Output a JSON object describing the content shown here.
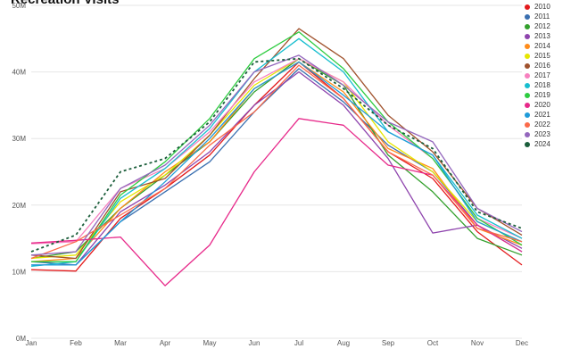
{
  "chart_data": {
    "type": "line",
    "title": "Recreation Visits",
    "xlabel": "",
    "ylabel": "",
    "categories": [
      "Jan",
      "Feb",
      "Mar",
      "Apr",
      "May",
      "Jun",
      "Jul",
      "Aug",
      "Sep",
      "Oct",
      "Nov",
      "Dec"
    ],
    "ylim": [
      0,
      50000000
    ],
    "y_ticks": [
      0,
      10000000,
      20000000,
      30000000,
      40000000,
      50000000
    ],
    "y_tick_labels": [
      "0M",
      "10M",
      "20M",
      "30M",
      "40M",
      "50M"
    ],
    "grid": true,
    "legend_position": "right",
    "series": [
      {
        "name": "2010",
        "color": "#e31a1c",
        "dash": false,
        "values": [
          10.3,
          10.1,
          18.0,
          22.5,
          27.5,
          35.0,
          41.5,
          36.0,
          28.0,
          24.0,
          16.0,
          11.0
        ]
      },
      {
        "name": "2011",
        "color": "#3a6fb0",
        "dash": false,
        "values": [
          11.5,
          11.0,
          17.5,
          22.0,
          26.5,
          34.0,
          40.5,
          35.5,
          29.0,
          25.0,
          17.0,
          13.0
        ]
      },
      {
        "name": "2012",
        "color": "#33a02c",
        "dash": false,
        "values": [
          12.0,
          13.0,
          19.5,
          24.5,
          29.5,
          37.0,
          42.0,
          38.0,
          27.5,
          22.0,
          15.0,
          12.5
        ]
      },
      {
        "name": "2013",
        "color": "#8e44ad",
        "dash": false,
        "values": [
          11.0,
          11.0,
          19.0,
          23.0,
          28.0,
          35.0,
          40.0,
          35.0,
          27.0,
          15.8,
          17.0,
          13.5
        ]
      },
      {
        "name": "2014",
        "color": "#ff8c1a",
        "dash": false,
        "values": [
          11.5,
          12.0,
          19.5,
          25.0,
          29.5,
          37.5,
          41.5,
          37.0,
          28.5,
          25.5,
          16.5,
          14.0
        ]
      },
      {
        "name": "2015",
        "color": "#e6e600",
        "dash": false,
        "values": [
          12.0,
          12.5,
          20.5,
          24.5,
          30.5,
          38.0,
          42.0,
          38.5,
          29.5,
          25.0,
          17.5,
          14.5
        ]
      },
      {
        "name": "2016",
        "color": "#a0522d",
        "dash": false,
        "values": [
          12.5,
          12.0,
          22.0,
          24.0,
          30.5,
          39.0,
          46.5,
          42.0,
          33.5,
          28.0,
          19.5,
          15.5
        ]
      },
      {
        "name": "2017",
        "color": "#f781bf",
        "dash": false,
        "values": [
          14.2,
          14.5,
          22.5,
          25.5,
          31.0,
          38.5,
          42.0,
          38.5,
          32.0,
          27.0,
          18.0,
          15.0
        ]
      },
      {
        "name": "2018",
        "color": "#17becf",
        "dash": false,
        "values": [
          10.8,
          11.5,
          21.0,
          25.5,
          31.5,
          40.0,
          45.0,
          40.0,
          31.0,
          27.5,
          18.5,
          15.0
        ]
      },
      {
        "name": "2019",
        "color": "#2ecc40",
        "dash": false,
        "values": [
          11.5,
          11.5,
          21.5,
          26.5,
          33.0,
          42.0,
          46.0,
          40.5,
          32.5,
          27.0,
          18.0,
          14.0
        ]
      },
      {
        "name": "2020",
        "color": "#e7298a",
        "dash": false,
        "values": [
          14.3,
          14.7,
          15.2,
          7.9,
          14.0,
          25.0,
          33.0,
          32.0,
          26.0,
          24.5,
          17.0,
          13.0
        ]
      },
      {
        "name": "2021",
        "color": "#1f9bd9",
        "dash": false,
        "values": [
          11.0,
          11.0,
          17.5,
          23.5,
          30.0,
          37.5,
          41.5,
          36.5,
          31.0,
          27.5,
          17.5,
          14.5
        ]
      },
      {
        "name": "2022",
        "color": "#fb6a4a",
        "dash": false,
        "values": [
          12.0,
          14.5,
          18.5,
          22.5,
          29.0,
          34.0,
          41.0,
          36.0,
          28.0,
          24.5,
          16.5,
          14.5
        ]
      },
      {
        "name": "2023",
        "color": "#9467bd",
        "dash": false,
        "values": [
          12.5,
          13.0,
          22.5,
          26.0,
          32.0,
          40.0,
          42.5,
          38.0,
          32.5,
          29.5,
          19.5,
          16.0
        ]
      },
      {
        "name": "2024",
        "color": "#1b5e3b",
        "dash": true,
        "values": [
          13.0,
          15.5,
          25.0,
          27.0,
          32.5,
          41.5,
          42.0,
          37.5,
          32.0,
          28.5,
          19.0,
          16.5
        ]
      }
    ]
  }
}
